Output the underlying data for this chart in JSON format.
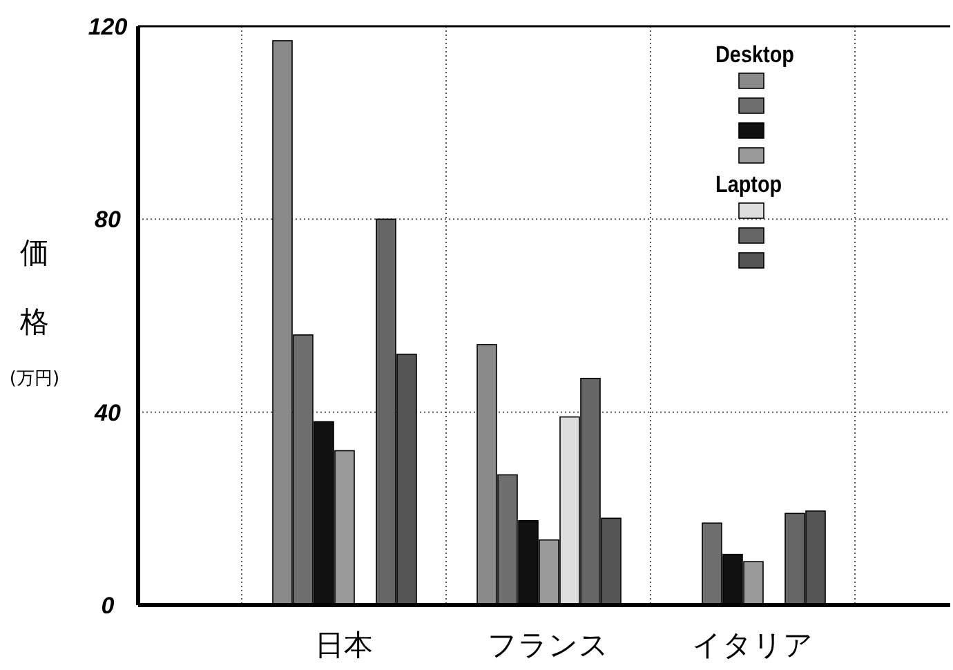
{
  "chart_data": {
    "type": "bar",
    "categories": [
      "日本",
      "フランス",
      "イタリア"
    ],
    "ylabel": "価格(万円)",
    "ylim": [
      0,
      120
    ],
    "yticks": [
      0,
      40,
      80,
      120
    ],
    "grid": true,
    "annotations": [
      "Desktop",
      "Laptop"
    ],
    "series": [
      {
        "color": "#8a8a8a",
        "values": [
          117,
          54,
          null
        ]
      },
      {
        "color": "#6e6e6e",
        "values": [
          56,
          27,
          17
        ]
      },
      {
        "color": "#111111",
        "values": [
          38,
          17.5,
          10.5
        ]
      },
      {
        "color": "#9a9a9a",
        "values": [
          32,
          13.5,
          9
        ]
      },
      {
        "color": "#dddddd",
        "values": [
          null,
          39,
          null
        ]
      },
      {
        "color": "#666666",
        "values": [
          80,
          47,
          19
        ]
      },
      {
        "color": "#555555",
        "values": [
          52,
          18,
          19.5
        ]
      }
    ]
  }
}
